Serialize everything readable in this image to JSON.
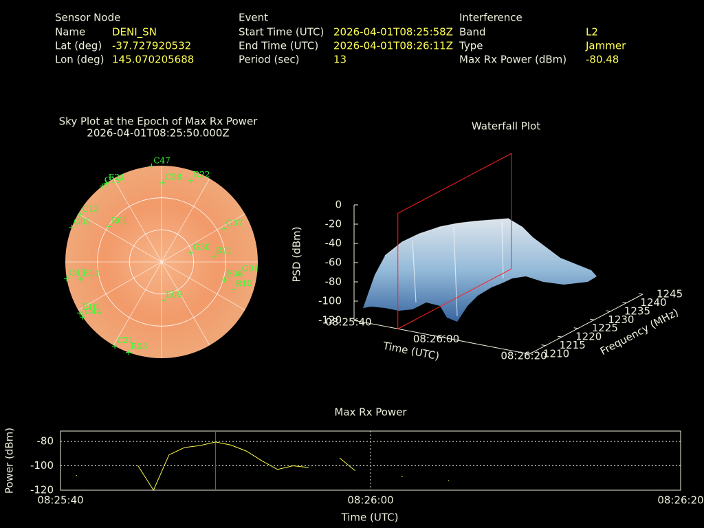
{
  "info": {
    "sensor": {
      "title": "Sensor Node",
      "rows": [
        [
          "Name",
          "DENI_SN"
        ],
        [
          "Lat (deg)",
          "-37.727920532"
        ],
        [
          "Lon (deg)",
          "145.070205688"
        ]
      ]
    },
    "event": {
      "title": "Event",
      "rows": [
        [
          "Start Time (UTC)",
          "2026-04-01T08:25:58Z"
        ],
        [
          "End Time (UTC)",
          "2026-04-01T08:26:11Z"
        ],
        [
          "Period (sec)",
          "13"
        ]
      ]
    },
    "interference": {
      "title": "Interference",
      "rows": [
        [
          "Band",
          "L2"
        ],
        [
          "Type",
          "Jammer"
        ],
        [
          "Max Rx Power (dBm)",
          "-80.48"
        ]
      ]
    }
  },
  "chart_data": [
    {
      "type": "polar",
      "title": "Sky Plot at the Epoch of Max Rx Power",
      "subtitle": "2026-04-01T08:25:50.000Z",
      "color": "#33ff33",
      "satellites": [
        "C47",
        "C58",
        "R22",
        "E21",
        "C19",
        "C13",
        "G05",
        "R01",
        "G07",
        "G30",
        "R21",
        "G01",
        "C45",
        "E14",
        "E08",
        "R10",
        "E09",
        "E10",
        "C44",
        "C21",
        "R03"
      ],
      "azimuth": [
        354,
        1,
        20,
        325,
        322,
        300,
        291,
        304,
        62,
        73,
        84,
        99,
        260,
        258,
        106,
        111,
        177,
        238,
        235,
        209,
        200
      ],
      "elevation": [
        0,
        16,
        9,
        0,
        0,
        2,
        0,
        31,
        24,
        61,
        41,
        16,
        0,
        13,
        29,
        18,
        54,
        0,
        0,
        0,
        0
      ]
    },
    {
      "type": "surface",
      "title": "Waterfall Plot",
      "xlabel": "Time (UTC)",
      "ylabel": "Frequency (MHz)",
      "zlabel": "PSD (dBm)",
      "xlim": [
        "08:25:40",
        "08:26:20"
      ],
      "xticks": [
        "08:25:40",
        "08:26:00",
        "08:26:20"
      ],
      "ylim": [
        1210,
        1245
      ],
      "yticks": [
        1210,
        1215,
        1220,
        1225,
        1230,
        1235,
        1240,
        1245
      ],
      "zlim": [
        -120,
        0
      ],
      "zticks": [
        0,
        -20,
        -40,
        -60,
        -80,
        -100,
        -120
      ],
      "epoch": "08:25:50",
      "epoch_color": "#ff2020"
    },
    {
      "type": "line",
      "title": "Max Rx Power",
      "xlabel": "Time (UTC)",
      "ylabel": "Power (dBm)",
      "x": [
        "08:25:40",
        "08:25:41",
        "08:25:42",
        "08:25:43",
        "08:25:44",
        "08:25:45",
        "08:25:46",
        "08:25:47",
        "08:25:48",
        "08:25:49",
        "08:25:50",
        "08:25:51",
        "08:25:52",
        "08:25:53",
        "08:25:54",
        "08:25:55",
        "08:25:56",
        "08:25:57",
        "08:25:58",
        "08:25:59",
        "08:26:00",
        "08:26:01",
        "08:26:02",
        "08:26:03",
        "08:26:04",
        "08:26:05"
      ],
      "values": [
        null,
        -108,
        null,
        null,
        null,
        -100,
        -120,
        -91,
        -85,
        -83.4,
        -80.48,
        -83,
        -88,
        -96,
        -103,
        -100,
        -101.4,
        null,
        -93.5,
        -104,
        null,
        null,
        -109,
        null,
        null,
        -112
      ],
      "color": "#ffff44",
      "xlim": [
        "08:25:40",
        "08:26:20"
      ],
      "xticks": [
        "08:25:40",
        "08:26:00",
        "08:26:20"
      ],
      "ylim": [
        -120,
        -71.5
      ],
      "yticks": [
        -80,
        -100,
        -120
      ],
      "grid": true,
      "epoch": "08:25:50",
      "epoch_color": "#ff2020"
    }
  ]
}
